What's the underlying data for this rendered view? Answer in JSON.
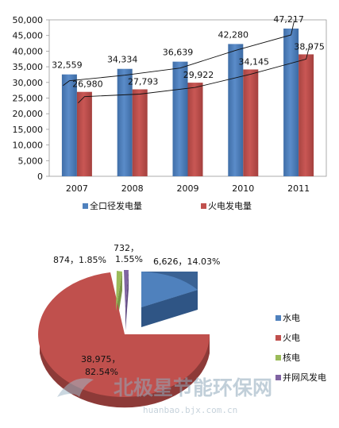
{
  "chart_data": [
    {
      "type": "bar",
      "categories": [
        "2007",
        "2008",
        "2009",
        "2010",
        "2011"
      ],
      "series": [
        {
          "name": "全口径发电量",
          "values": [
            32559,
            34334,
            36639,
            42280,
            47217
          ],
          "color": "#4f81bd"
        },
        {
          "name": "火电发电量",
          "values": [
            26980,
            27793,
            29922,
            34145,
            38975
          ],
          "color": "#c0504d"
        }
      ],
      "data_labels": {
        "series0": [
          "32,559",
          "34,334",
          "36,639",
          "42,280",
          "47,217"
        ],
        "series1": [
          "26,980",
          "27,793",
          "29,922",
          "34,145",
          "38,975"
        ]
      },
      "yticks": [
        "0",
        "5,000",
        "10,000",
        "15,000",
        "20,000",
        "25,000",
        "30,000",
        "35,000",
        "40,000",
        "45,000",
        "50,000"
      ],
      "ylim": [
        0,
        50000
      ],
      "trendlines": true,
      "grid": false,
      "legend_position": "bottom"
    },
    {
      "type": "pie",
      "style": "3d-exploded",
      "slices": [
        {
          "name": "水电",
          "value": 6626,
          "percent": 14.03,
          "label": "6,626，14.03%",
          "color": "#4f81bd"
        },
        {
          "name": "火电",
          "value": 38975,
          "percent": 82.54,
          "label_line1": "38,975，",
          "label_line2": "82.54%",
          "color": "#c0504d"
        },
        {
          "name": "核电",
          "value": 874,
          "percent": 1.85,
          "label": "874，1.85%",
          "color": "#9bbb59"
        },
        {
          "name": "并网风发电",
          "value": 732,
          "percent": 1.55,
          "label_line1": "732，",
          "label_line2": "1.55%",
          "color": "#8064a2"
        }
      ],
      "legend_position": "right"
    }
  ],
  "watermark": {
    "text": "北极星节能环保网",
    "url": "huanbao.bjx.com.cn"
  }
}
